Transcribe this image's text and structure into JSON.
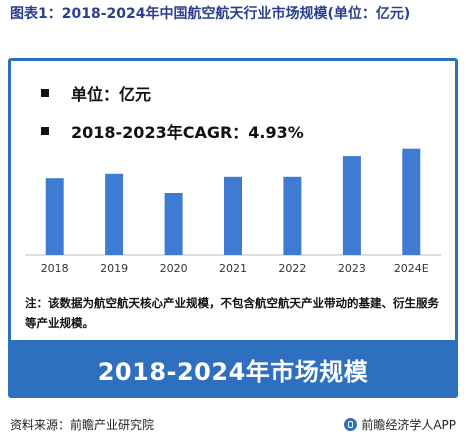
{
  "figure_title": "图表1：2018-2024年中国航空航天行业市场规模(单位：亿元)",
  "legend": {
    "unit_line": "单位：亿元",
    "cagr_line": "2018-2023年CAGR：4.93%"
  },
  "note": "注：该数据为航空航天核心产业规模，不包含航空航天产业带动的基建、衍生服务等产业规模。",
  "banner": "2018-2024年市场规模",
  "footer": {
    "source": "资料来源：前瞻产业研究院",
    "brand": "前瞻经济学人APP"
  },
  "colors": {
    "bar": "#3f7ad3",
    "panel": "#2f6fbf",
    "title": "#2a3f8f"
  },
  "chart_data": {
    "type": "bar",
    "categories": [
      "2018",
      "2019",
      "2020",
      "2021",
      "2022",
      "2023",
      "2024E"
    ],
    "values": [
      2.6,
      2.75,
      2.1,
      2.65,
      2.65,
      3.35,
      3.6
    ],
    "ylim": [
      0,
      4.2
    ],
    "grid": false,
    "axes_visible": {
      "y": false,
      "x_line": true
    }
  }
}
